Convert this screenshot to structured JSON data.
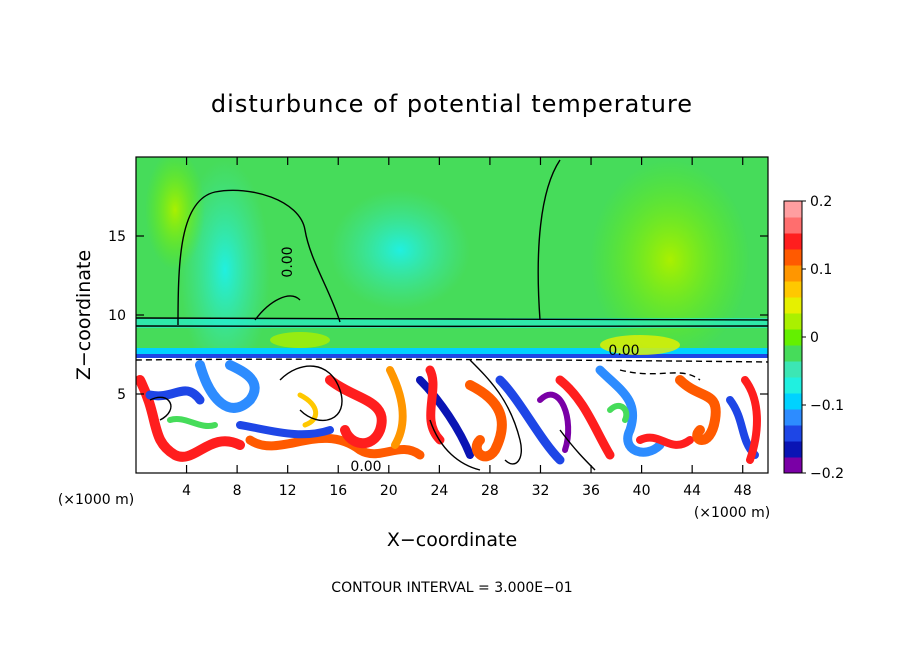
{
  "chart_data": {
    "type": "heatmap",
    "title": "disturbunce of potential temperature",
    "xlabel": "X−coordinate",
    "ylabel": "Z−coordinate",
    "x_unit_left": "(×1000 m)",
    "x_unit_right": "(×1000 m)",
    "footer": "CONTOUR INTERVAL = 3.000E−01",
    "xlim": [
      0,
      50
    ],
    "ylim": [
      0,
      20
    ],
    "x_ticks": [
      4,
      8,
      12,
      16,
      20,
      24,
      28,
      32,
      36,
      40,
      44,
      48
    ],
    "x_tick_labels": [
      "4",
      "8",
      "12",
      "16",
      "20",
      "24",
      "28",
      "32",
      "36",
      "40",
      "44",
      "48"
    ],
    "y_ticks": [
      5,
      10,
      15
    ],
    "y_tick_labels": [
      "5",
      "10",
      "15"
    ],
    "contour_interval": 0.3,
    "contour_labels": [
      {
        "text": "0.00",
        "x": 12.5,
        "z": 14.0,
        "rotate": -90
      },
      {
        "text": "0.00",
        "x": 38.8,
        "z": 7.8,
        "rotate": 0
      },
      {
        "text": "0.00",
        "x": 18.2,
        "z": 0.3,
        "rotate": 0
      }
    ],
    "colorbar": {
      "min": -0.2,
      "max": 0.2,
      "ticks": [
        0.2,
        0.1,
        0,
        -0.1,
        -0.2
      ],
      "tick_labels": [
        "0.2",
        "0.1",
        "0",
        "−0.1",
        "−0.2"
      ],
      "colors": [
        "#7a00a6",
        "#0a14b4",
        "#1e46e6",
        "#2d8cff",
        "#00d2ff",
        "#20f0e0",
        "#3ce6b4",
        "#46dc5a",
        "#64f000",
        "#aaf000",
        "#e6f000",
        "#ffc800",
        "#ff9600",
        "#ff5a00",
        "#ff1e1e",
        "#ff6e6e",
        "#ff9ea0"
      ]
    },
    "field_summary": {
      "upper_layer_z": [
        9.5,
        20
      ],
      "upper_layer_value": 0.02,
      "tropopause_z": 7.2,
      "lower_layer_z": [
        0,
        7.2
      ],
      "lower_layer_range": [
        -0.2,
        0.2
      ]
    }
  }
}
